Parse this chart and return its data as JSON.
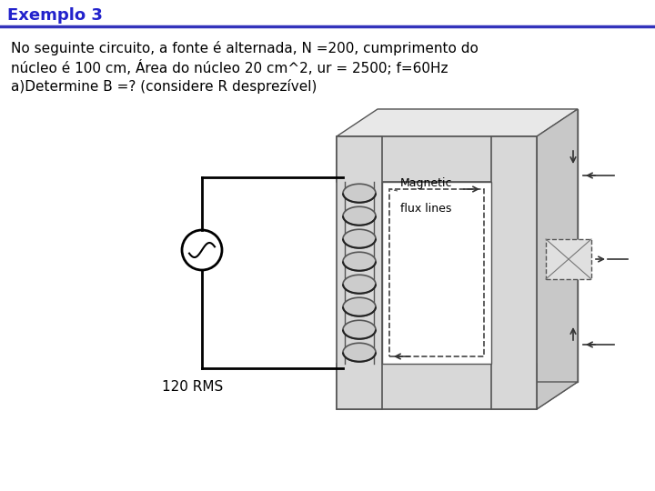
{
  "title": "Exemplo 3",
  "title_color": "#2222cc",
  "title_fontsize": 13,
  "background_color": "#ffffff",
  "text_line1": "No seguinte circuito, a fonte é alternada, N =200, cumprimento do",
  "text_line2": "núcleo é 100 cm, Área do núcleo 20 cm^2, ur = 2500; f=60Hz",
  "text_line3": "a)Determine B =? (considere R desprezível)",
  "label_120rms": "120 RMS",
  "label_magnetic": "Magnetic",
  "label_flux": "flux lines",
  "text_fontsize": 11,
  "core_color": "#d8d8d8",
  "core_edge": "#555555",
  "core_top_color": "#e8e8e8",
  "core_side_color": "#c8c8c8",
  "inner_color": "#f0f0f0",
  "coil_color": "#d0d0d0"
}
